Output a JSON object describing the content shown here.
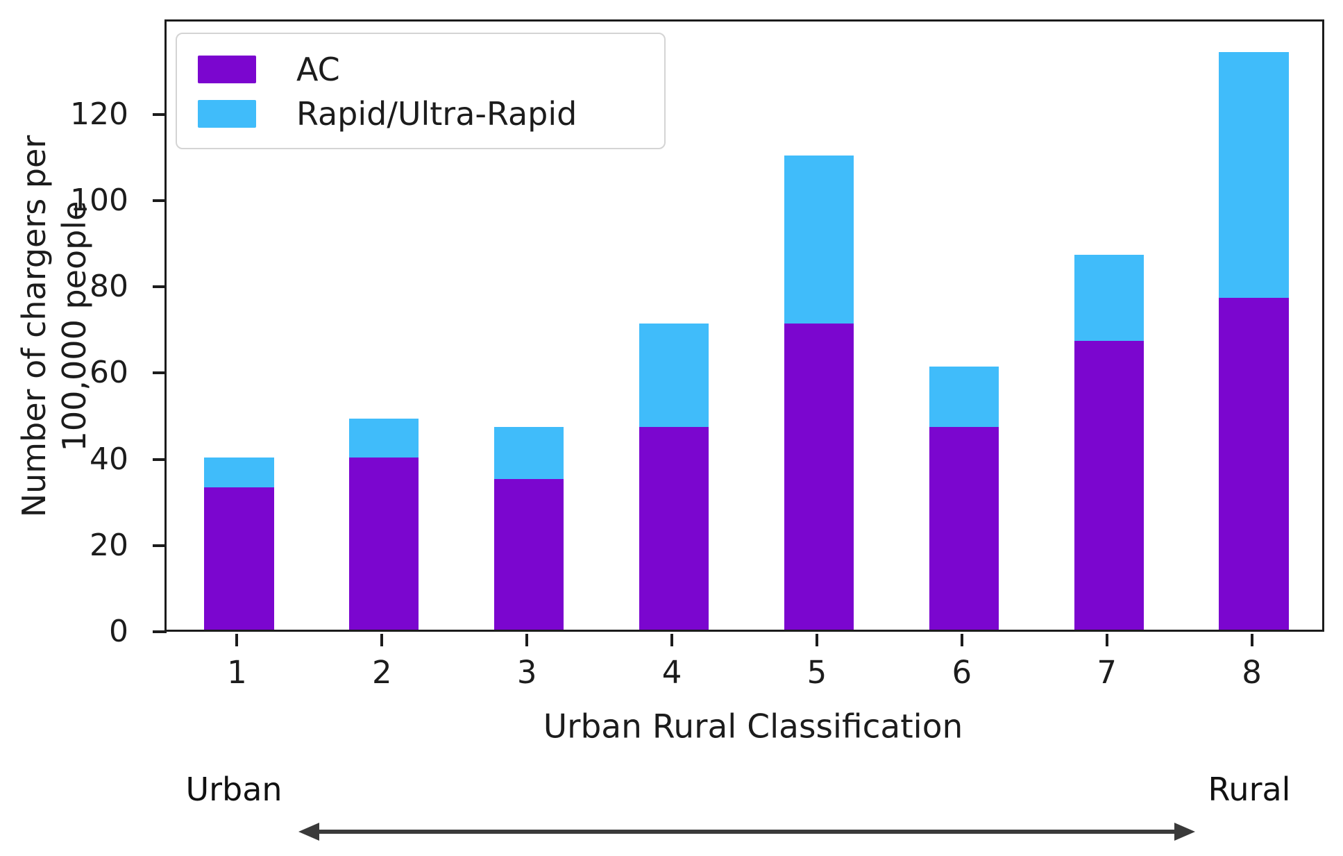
{
  "chart_data": {
    "type": "bar",
    "stacked": true,
    "categories": [
      "1",
      "2",
      "3",
      "4",
      "5",
      "6",
      "7",
      "8"
    ],
    "series": [
      {
        "name": "AC",
        "color": "#7b06cf",
        "values": [
          33,
          40,
          35,
          47,
          71,
          47,
          67,
          77
        ]
      },
      {
        "name": "Rapid/Ultra-Rapid",
        "color": "#40bcfa",
        "values": [
          7,
          9,
          12,
          24,
          39,
          14,
          20,
          57
        ]
      }
    ],
    "totals": [
      40,
      49,
      47,
      71,
      110,
      61,
      87,
      134
    ],
    "xlabel": "Urban Rural Classification",
    "ylabel_line1": "Number of chargers per",
    "ylabel_line2": "100,000 people",
    "yticks": [
      0,
      20,
      40,
      60,
      80,
      100,
      120
    ],
    "ylim": [
      0,
      142
    ],
    "grid": false,
    "legend_position": "upper left",
    "bar_width_fraction": 0.48
  },
  "annotation": {
    "left_label": "Urban",
    "right_label": "Rural",
    "arrow_style": "double-headed"
  },
  "colors": {
    "ac": "#7b06cf",
    "rapid": "#40bcfa",
    "axis": "#1c1c1c",
    "arrow": "#3a3a3a",
    "background": "#ffffff"
  }
}
